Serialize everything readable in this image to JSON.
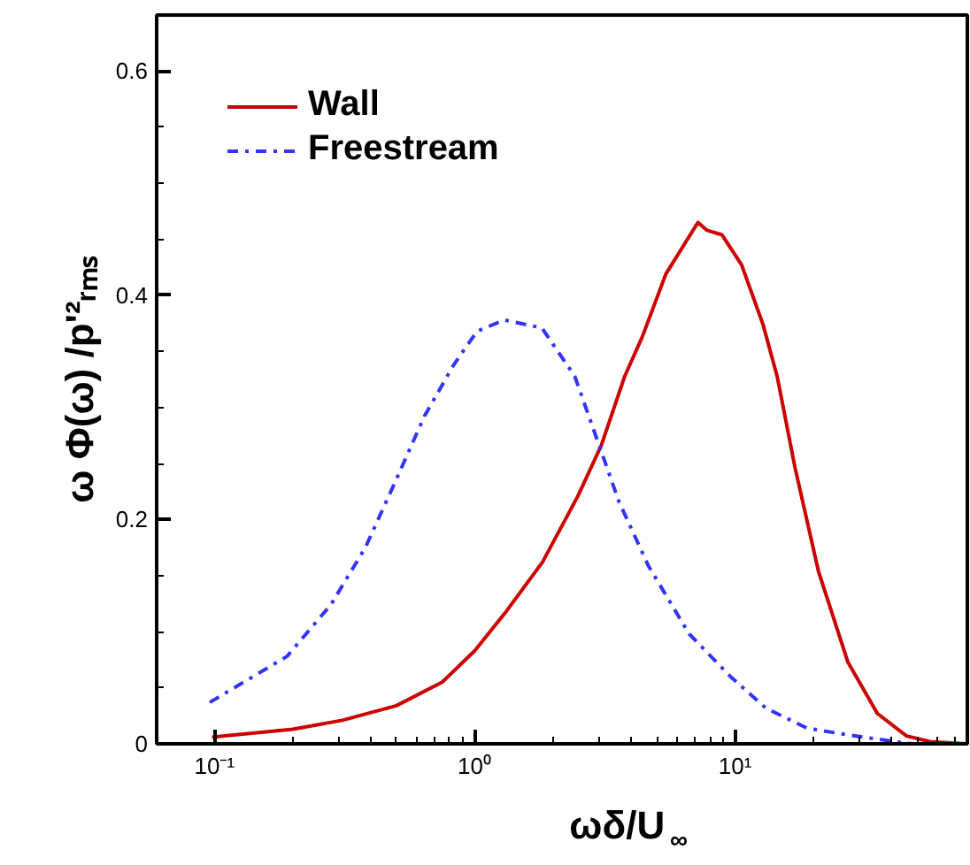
{
  "chart_data": {
    "type": "line",
    "xlabel": "ωδ/U$_{∞}$",
    "ylabel": "ω Φ(ω) /p'²ᵣₘₛ",
    "log": "x",
    "legend": "top left",
    "grid": false,
    "xlim": [
      0.06,
      78
    ],
    "ylim": [
      0,
      0.65
    ],
    "xticks": [
      {
        "value": 0.1,
        "label": "10⁻¹"
      },
      {
        "value": 0.2,
        "label": null
      },
      {
        "value": 0.3,
        "label": null
      },
      {
        "value": 0.4,
        "label": null
      },
      {
        "value": 0.5,
        "label": null
      },
      {
        "value": 0.6,
        "label": null
      },
      {
        "value": 0.7,
        "label": null
      },
      {
        "value": 0.8,
        "label": null
      },
      {
        "value": 0.9,
        "label": null
      },
      {
        "value": 1,
        "label": "10⁰"
      },
      {
        "value": 2,
        "label": null
      },
      {
        "value": 3,
        "label": null
      },
      {
        "value": 4,
        "label": null
      },
      {
        "value": 5,
        "label": null
      },
      {
        "value": 6,
        "label": null
      },
      {
        "value": 7,
        "label": null
      },
      {
        "value": 8,
        "label": null
      },
      {
        "value": 9,
        "label": null
      },
      {
        "value": 10,
        "label": "10¹"
      },
      {
        "value": 20,
        "label": null
      },
      {
        "value": 30,
        "label": null
      },
      {
        "value": 40,
        "label": null
      },
      {
        "value": 50,
        "label": null
      },
      {
        "value": 60,
        "label": null
      },
      {
        "value": 70,
        "label": null
      }
    ],
    "yticks": [
      0,
      {
        "value": 0.05,
        "label": null
      },
      {
        "value": 0.1,
        "label": null
      },
      {
        "value": 0.15,
        "label": null
      },
      0.2,
      {
        "value": 0.25,
        "label": null
      },
      {
        "value": 0.3,
        "label": null
      },
      {
        "value": 0.35,
        "label": null
      },
      0.4,
      {
        "value": 0.45,
        "label": null
      },
      {
        "value": 0.5,
        "label": null
      },
      {
        "value": 0.55,
        "label": null
      },
      0.6
    ],
    "series": [
      {
        "name": "Wall",
        "color": "#cc0000",
        "line_style": "solid",
        "x": [
          0.098,
          0.2,
          0.31,
          0.5,
          0.75,
          1.0,
          1.33,
          1.82,
          2.49,
          3.06,
          3.77,
          4.4,
          5.42,
          7.2,
          7.8,
          8.9,
          10.6,
          12.8,
          14.5,
          17.0,
          20.9,
          27.1,
          35.2,
          45.6,
          56,
          77
        ],
        "values": [
          0.006,
          0.013,
          0.021,
          0.034,
          0.055,
          0.083,
          0.119,
          0.162,
          0.221,
          0.266,
          0.328,
          0.363,
          0.419,
          0.465,
          0.458,
          0.454,
          0.427,
          0.374,
          0.328,
          0.246,
          0.154,
          0.073,
          0.027,
          0.007,
          0.002,
          0
        ]
      },
      {
        "name": "Freestream",
        "color": "#3333ff",
        "line_style": "dashdot",
        "x": [
          0.096,
          0.19,
          0.28,
          0.38,
          0.5,
          0.64,
          0.83,
          1.02,
          1.3,
          1.81,
          2.42,
          3.06,
          3.58,
          4.64,
          6.66,
          9.6,
          13.1,
          18.9,
          27.1,
          41,
          48
        ],
        "values": [
          0.037,
          0.078,
          0.124,
          0.175,
          0.236,
          0.292,
          0.338,
          0.368,
          0.378,
          0.371,
          0.328,
          0.261,
          0.216,
          0.159,
          0.098,
          0.06,
          0.032,
          0.014,
          0.008,
          0.002,
          0
        ]
      }
    ]
  }
}
